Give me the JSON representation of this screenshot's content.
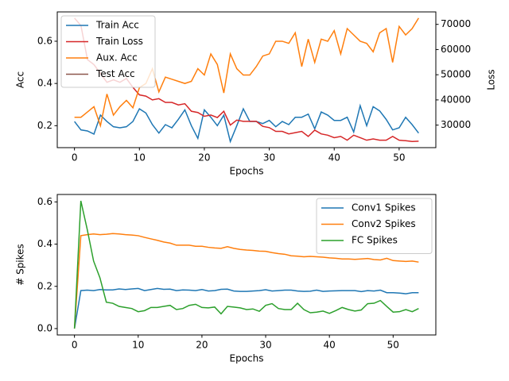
{
  "chart_data": [
    {
      "type": "line",
      "xlabel": "Epochs",
      "ylabel": "Acc",
      "y2label": "Loss",
      "x": [
        0,
        1,
        2,
        3,
        4,
        5,
        6,
        7,
        8,
        9,
        10,
        11,
        12,
        13,
        14,
        15,
        16,
        17,
        18,
        19,
        20,
        21,
        22,
        23,
        24,
        25,
        26,
        27,
        28,
        29,
        30,
        31,
        32,
        33,
        34,
        35,
        36,
        37,
        38,
        39,
        40,
        41,
        42,
        43,
        44,
        45,
        46,
        47,
        48,
        49,
        50,
        51,
        52,
        53
      ],
      "xlim": [
        -2.65,
        55.65
      ],
      "xticks": [
        0,
        10,
        20,
        30,
        40,
        50
      ],
      "ylim": [
        0.096,
        0.739
      ],
      "yticks": [
        0.2,
        0.4,
        0.6
      ],
      "y2lim": [
        21050,
        74950
      ],
      "y2ticks": [
        30000,
        40000,
        50000,
        60000,
        70000
      ],
      "legend": "upper left",
      "series": [
        {
          "name": "Train Acc",
          "color": "#1f77b4",
          "values": [
            0.22,
            0.18,
            0.175,
            0.16,
            0.25,
            0.22,
            0.195,
            0.19,
            0.195,
            0.22,
            0.28,
            0.26,
            0.205,
            0.165,
            0.205,
            0.19,
            0.23,
            0.275,
            0.2,
            0.14,
            0.275,
            0.24,
            0.2,
            0.25,
            0.125,
            0.2,
            0.28,
            0.22,
            0.22,
            0.21,
            0.225,
            0.195,
            0.22,
            0.205,
            0.24,
            0.24,
            0.255,
            0.185,
            0.265,
            0.25,
            0.225,
            0.225,
            0.24,
            0.17,
            0.295,
            0.2,
            0.29,
            0.27,
            0.23,
            0.18,
            0.19,
            0.24,
            0.205,
            0.165
          ]
        },
        {
          "name": "Train Loss",
          "color": "#d62728",
          "axis": "y2",
          "values": [
            72500,
            69500,
            56000,
            54000,
            50500,
            47000,
            48000,
            47000,
            48500,
            45000,
            42000,
            41500,
            40000,
            40500,
            39000,
            39000,
            38000,
            38500,
            35500,
            35000,
            33500,
            34000,
            33000,
            35500,
            30000,
            32000,
            31500,
            31500,
            31500,
            29500,
            29000,
            27500,
            27500,
            26500,
            27000,
            27500,
            25500,
            28000,
            26500,
            26000,
            25000,
            25500,
            24000,
            26000,
            25000,
            24000,
            24500,
            24000,
            24000,
            25500,
            24000,
            23800,
            23500,
            23600
          ]
        },
        {
          "name": "Aux. Acc",
          "color": "#ff7f0e",
          "values": [
            0.24,
            0.24,
            0.265,
            0.29,
            0.2,
            0.35,
            0.25,
            0.29,
            0.32,
            0.285,
            0.38,
            0.4,
            0.47,
            0.36,
            0.43,
            0.42,
            0.41,
            0.4,
            0.41,
            0.47,
            0.44,
            0.54,
            0.49,
            0.355,
            0.54,
            0.47,
            0.44,
            0.44,
            0.48,
            0.53,
            0.54,
            0.6,
            0.6,
            0.59,
            0.64,
            0.48,
            0.61,
            0.5,
            0.61,
            0.6,
            0.65,
            0.54,
            0.66,
            0.63,
            0.6,
            0.59,
            0.55,
            0.64,
            0.66,
            0.5,
            0.67,
            0.63,
            0.66,
            0.71
          ]
        },
        {
          "name": "Test Acc",
          "color": "#8c564b",
          "values": [
            null,
            null,
            null,
            null,
            null,
            null,
            null,
            null,
            null,
            null,
            null,
            null,
            null,
            null,
            null,
            null,
            null,
            null,
            null,
            null,
            null,
            null,
            null,
            null,
            null,
            null,
            null,
            null,
            null,
            null,
            null,
            null,
            null,
            null,
            null,
            null,
            null,
            null,
            null,
            null,
            null,
            null,
            null,
            null,
            null,
            null,
            null,
            null,
            null,
            null,
            null,
            null,
            null,
            null
          ]
        }
      ]
    },
    {
      "type": "line",
      "xlabel": "Epochs",
      "ylabel": "# Spikes",
      "x": [
        0,
        1,
        2,
        3,
        4,
        5,
        6,
        7,
        8,
        9,
        10,
        11,
        12,
        13,
        14,
        15,
        16,
        17,
        18,
        19,
        20,
        21,
        22,
        23,
        24,
        25,
        26,
        27,
        28,
        29,
        30,
        31,
        32,
        33,
        34,
        35,
        36,
        37,
        38,
        39,
        40,
        41,
        42,
        43,
        44,
        45,
        46,
        47,
        48,
        49,
        50,
        51,
        52,
        53,
        54
      ],
      "xlim": [
        -2.7,
        56.7
      ],
      "xticks": [
        0,
        10,
        20,
        30,
        40,
        50
      ],
      "ylim": [
        -0.03025,
        0.63525
      ],
      "yticks": [
        {
          "value": 0,
          "label": "0.0"
        },
        0.2,
        0.4,
        0.6
      ],
      "legend": "upper right",
      "series": [
        {
          "name": "Conv1 Spikes",
          "color": "#1f77b4",
          "values": [
            0.0,
            0.18,
            0.182,
            0.18,
            0.185,
            0.183,
            0.183,
            0.188,
            0.185,
            0.188,
            0.19,
            0.18,
            0.185,
            0.19,
            0.186,
            0.187,
            0.18,
            0.183,
            0.182,
            0.18,
            0.185,
            0.178,
            0.18,
            0.186,
            0.187,
            0.178,
            0.176,
            0.176,
            0.178,
            0.18,
            0.184,
            0.178,
            0.18,
            0.182,
            0.182,
            0.178,
            0.176,
            0.177,
            0.182,
            0.176,
            0.178,
            0.179,
            0.18,
            0.18,
            0.18,
            0.175,
            0.18,
            0.178,
            0.182,
            0.17,
            0.17,
            0.168,
            0.165,
            0.17,
            0.17
          ]
        },
        {
          "name": "Conv2 Spikes",
          "color": "#ff7f0e",
          "values": [
            0.0,
            0.44,
            0.445,
            0.448,
            0.445,
            0.447,
            0.45,
            0.448,
            0.445,
            0.443,
            0.44,
            0.432,
            0.425,
            0.418,
            0.41,
            0.405,
            0.395,
            0.395,
            0.395,
            0.39,
            0.39,
            0.385,
            0.382,
            0.38,
            0.388,
            0.38,
            0.375,
            0.372,
            0.37,
            0.367,
            0.366,
            0.36,
            0.355,
            0.352,
            0.345,
            0.343,
            0.34,
            0.342,
            0.34,
            0.338,
            0.335,
            0.333,
            0.33,
            0.33,
            0.328,
            0.33,
            0.332,
            0.327,
            0.325,
            0.333,
            0.322,
            0.32,
            0.318,
            0.32,
            0.315
          ]
        },
        {
          "name": "FC Spikes",
          "color": "#2ca02c",
          "values": [
            0.0,
            0.605,
            0.47,
            0.32,
            0.24,
            0.125,
            0.12,
            0.105,
            0.1,
            0.095,
            0.08,
            0.085,
            0.1,
            0.1,
            0.105,
            0.11,
            0.09,
            0.095,
            0.11,
            0.115,
            0.1,
            0.098,
            0.102,
            0.07,
            0.105,
            0.102,
            0.098,
            0.09,
            0.093,
            0.082,
            0.11,
            0.118,
            0.095,
            0.09,
            0.09,
            0.12,
            0.09,
            0.075,
            0.078,
            0.083,
            0.072,
            0.085,
            0.1,
            0.09,
            0.083,
            0.088,
            0.118,
            0.12,
            0.133,
            0.105,
            0.078,
            0.08,
            0.09,
            0.08,
            0.095
          ]
        }
      ]
    }
  ]
}
